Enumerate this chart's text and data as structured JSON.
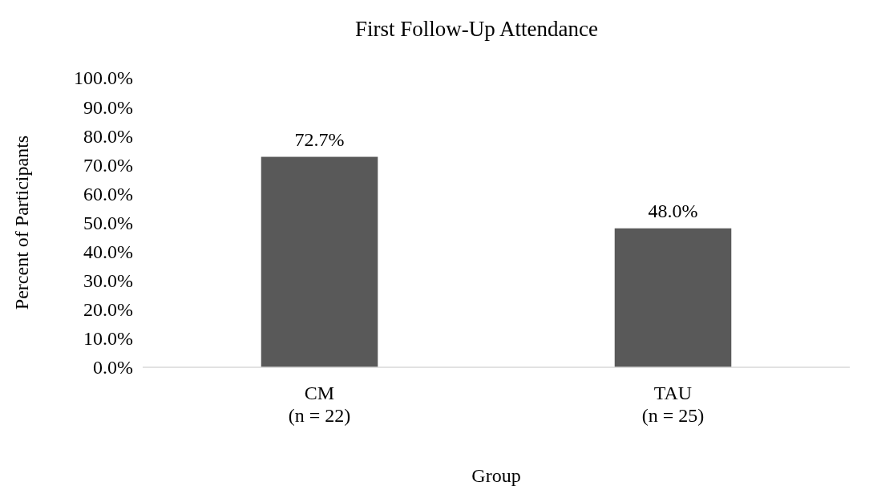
{
  "chart_data": {
    "type": "bar",
    "title": "First Follow-Up Attendance",
    "xlabel": "Group",
    "ylabel": "Percent of Participants",
    "categories": [
      "CM\n(n = 22)",
      "TAU\n(n = 25)"
    ],
    "values": [
      72.7,
      48.0
    ],
    "color": "#595959",
    "value_labels": [
      "72.7%",
      "48.0%"
    ],
    "ylim": [
      0,
      100
    ],
    "yticks": [
      {
        "value": 0,
        "label": "0.0%"
      },
      {
        "value": 10,
        "label": "10.0%"
      },
      {
        "value": 20,
        "label": "20.0%"
      },
      {
        "value": 30,
        "label": "30.0%"
      },
      {
        "value": 40,
        "label": "40.0%"
      },
      {
        "value": 50,
        "label": "50.0%"
      },
      {
        "value": 60,
        "label": "60.0%"
      },
      {
        "value": 70,
        "label": "70.0%"
      },
      {
        "value": 80,
        "label": "80.0%"
      },
      {
        "value": 90,
        "label": "90.0%"
      },
      {
        "value": 100,
        "label": "100.0%"
      }
    ],
    "grid": false
  }
}
